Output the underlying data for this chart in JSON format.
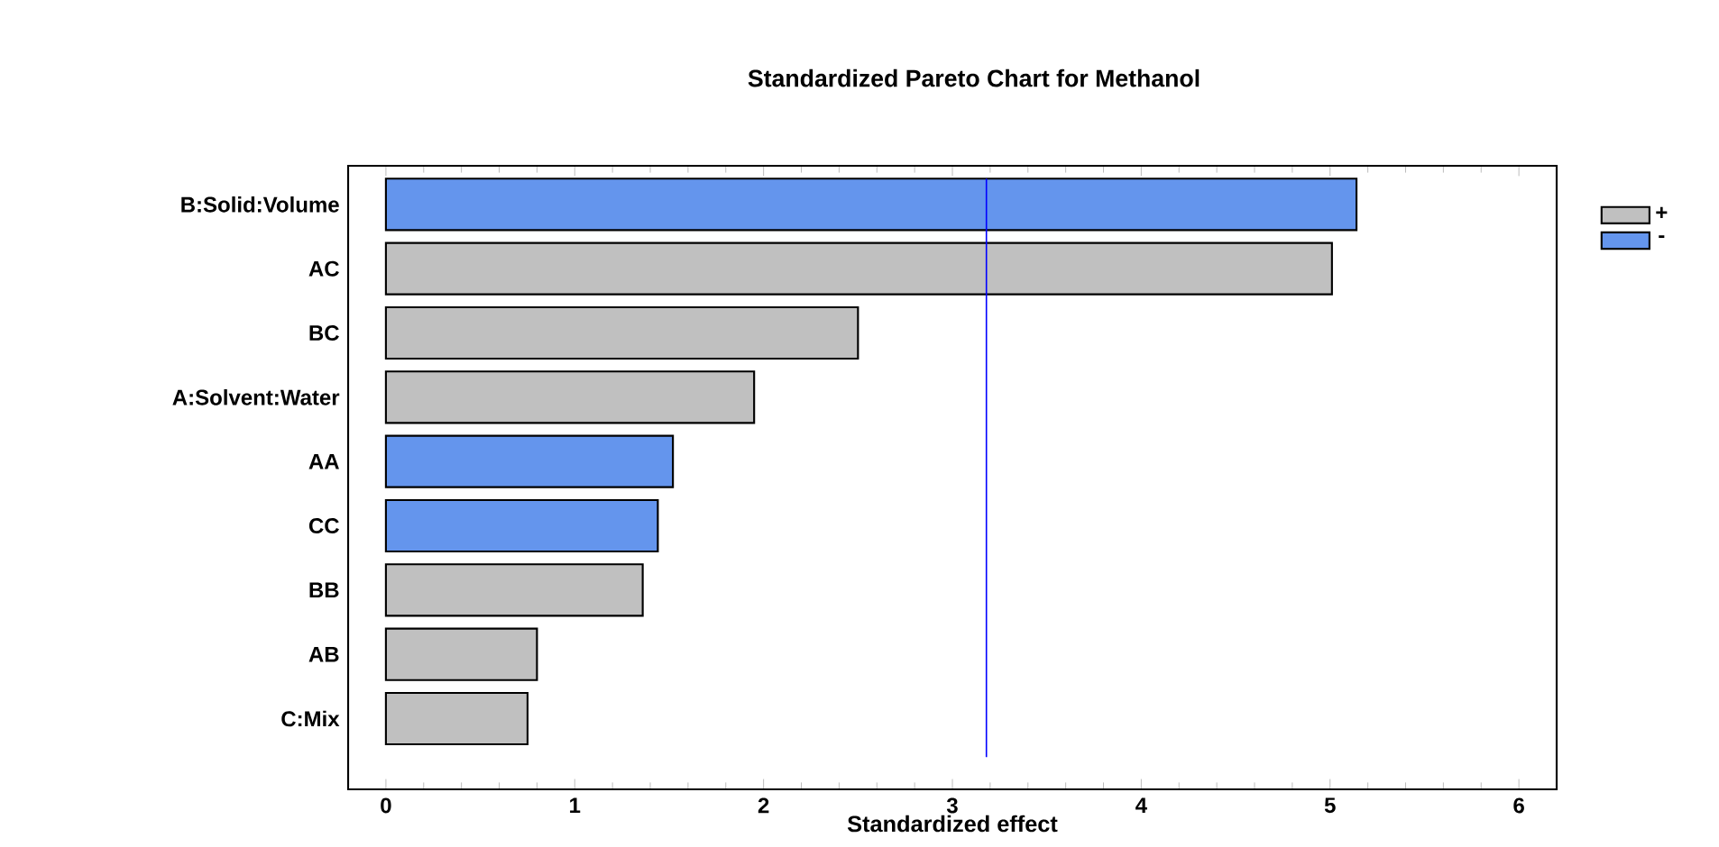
{
  "chart_data": {
    "type": "bar",
    "orientation": "horizontal",
    "title": "Standardized Pareto Chart for Methanol",
    "xlabel": "Standardized effect",
    "categories": [
      "B:Solid:Volume",
      "AC",
      "BC",
      "A:Solvent:Water",
      "AA",
      "CC",
      "BB",
      "AB",
      "C:Mix"
    ],
    "series": [
      {
        "name": "+",
        "color": "#c0c0c0",
        "values": [
          null,
          5.01,
          2.5,
          1.95,
          null,
          null,
          1.36,
          0.8,
          0.75
        ]
      },
      {
        "name": "-",
        "color": "#6495ed",
        "values": [
          5.14,
          null,
          null,
          null,
          1.52,
          1.44,
          null,
          null,
          null
        ]
      }
    ],
    "xlim": [
      -0.2,
      6.2
    ],
    "xticks": [
      0,
      1,
      2,
      3,
      4,
      5,
      6
    ],
    "ref_lines": [
      {
        "axis": "x",
        "value": 3.18,
        "color": "#0000ff"
      }
    ],
    "legend": "right",
    "grid": false
  }
}
